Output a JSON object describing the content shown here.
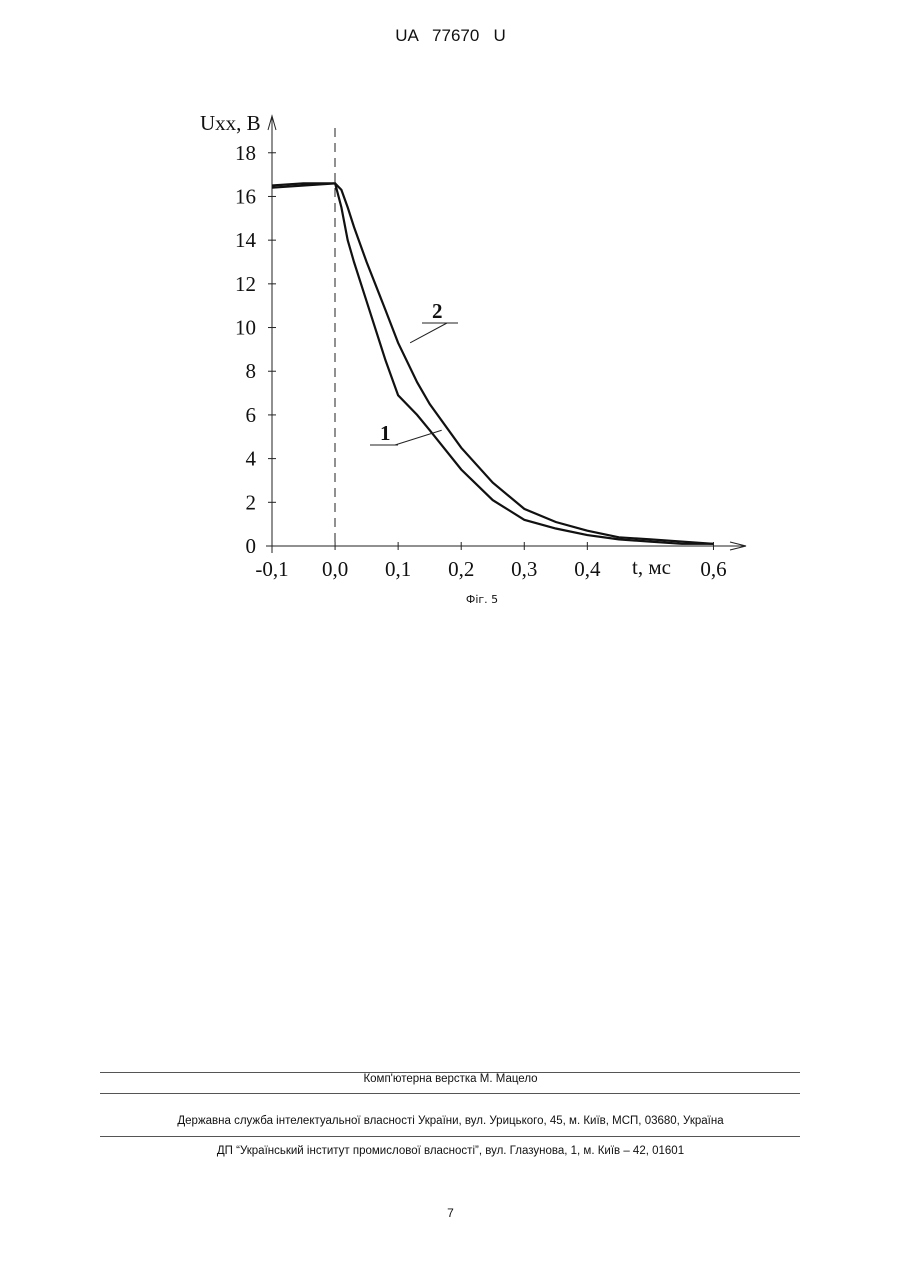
{
  "header": "UA   77670   U",
  "chart_data": {
    "type": "line",
    "y_label": "Uxx, В",
    "x_label": "t, мс",
    "caption": "Фіг. 5",
    "x": [
      -0.1,
      -0.05,
      0.0,
      0.01,
      0.02,
      0.03,
      0.05,
      0.08,
      0.1,
      0.13,
      0.15,
      0.2,
      0.25,
      0.3,
      0.35,
      0.4,
      0.45,
      0.5,
      0.55,
      0.6
    ],
    "series": [
      {
        "name": "1",
        "color": "#111111",
        "values": [
          16.5,
          16.6,
          16.6,
          15.5,
          14.0,
          13.0,
          11.2,
          8.5,
          6.9,
          6.0,
          5.3,
          3.5,
          2.1,
          1.2,
          0.8,
          0.5,
          0.3,
          0.2,
          0.1,
          0.1
        ]
      },
      {
        "name": "2",
        "color": "#111111",
        "values": [
          16.4,
          16.5,
          16.6,
          16.3,
          15.5,
          14.6,
          13.0,
          10.8,
          9.3,
          7.5,
          6.5,
          4.5,
          2.9,
          1.7,
          1.1,
          0.7,
          0.4,
          0.3,
          0.2,
          0.1
        ]
      }
    ],
    "xlim": [
      -0.1,
      0.65
    ],
    "ylim": [
      0,
      19.5
    ],
    "xticks": [
      {
        "value": -0.1,
        "label": "-0,1"
      },
      {
        "value": 0.0,
        "label": "0,0"
      },
      {
        "value": 0.1,
        "label": "0,1"
      },
      {
        "value": 0.2,
        "label": "0,2"
      },
      {
        "value": 0.3,
        "label": "0,3"
      },
      {
        "value": 0.4,
        "label": "0,4"
      },
      {
        "value": 0.6,
        "label": "0,6"
      }
    ],
    "yticks": [
      0,
      2,
      4,
      6,
      8,
      10,
      12,
      14,
      16,
      18
    ]
  },
  "footer": {
    "layout": "Комп'ютерна верстка М. Мацело",
    "agency": "Державна служба інтелектуальної власності України, вул. Урицького, 45, м. Київ, МСП, 03680, Україна",
    "institute": "ДП “Український інститут промислової власності”, вул. Глазунова, 1, м. Київ – 42, 01601",
    "page": "7"
  }
}
